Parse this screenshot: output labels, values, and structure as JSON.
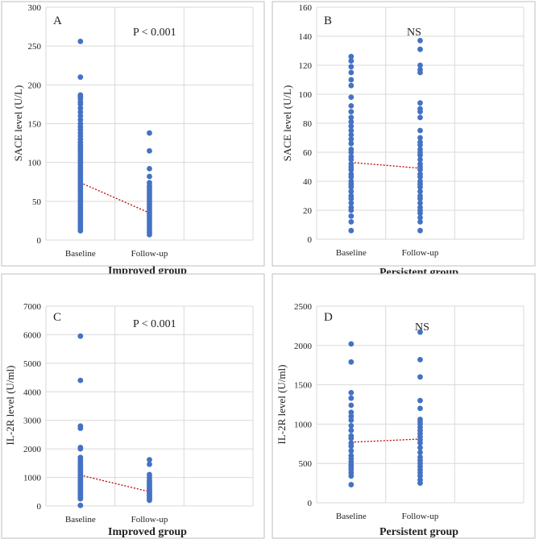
{
  "colors": {
    "point": "#4472C4",
    "trend": "#C00000",
    "grid": "#d9d9d9",
    "frame": "#bfbfbf"
  },
  "chart_data": [
    {
      "type": "scatter",
      "panel": "A",
      "annotation": "P < 0.001",
      "ylabel": "SACE level (U/L)",
      "xlabel": "Improved group",
      "categories": [
        "Baseline",
        "Follow-up"
      ],
      "ylim": [
        0,
        300
      ],
      "yticks": [
        0,
        50,
        100,
        150,
        200,
        250,
        300
      ],
      "ytick_labels": [
        "0",
        "50",
        "100",
        "150",
        "200",
        "250",
        "300"
      ],
      "series": [
        {
          "name": "Baseline",
          "values": [
            256,
            210,
            187,
            185,
            182,
            178,
            175,
            170,
            165,
            160,
            155,
            150,
            146,
            142,
            138,
            134,
            130,
            126,
            123,
            120,
            117,
            114,
            111,
            108,
            105,
            102,
            99,
            96,
            93,
            90,
            87,
            84,
            81,
            78,
            75,
            72,
            69,
            66,
            63,
            60,
            57,
            54,
            51,
            48,
            45,
            42,
            39,
            36,
            33,
            30,
            27,
            24,
            21,
            18,
            15,
            12
          ]
        },
        {
          "name": "Follow-up",
          "values": [
            138,
            115,
            92,
            82,
            74,
            70,
            67,
            64,
            61,
            58,
            55,
            52,
            49,
            46,
            43,
            40,
            37,
            34,
            31,
            28,
            25,
            22,
            19,
            16,
            13,
            10,
            7
          ]
        }
      ],
      "trend": [
        74,
        35
      ]
    },
    {
      "type": "scatter",
      "panel": "B",
      "annotation": "NS",
      "ylabel": "SACE level (U/L)",
      "xlabel": "Persistent group",
      "categories": [
        "Baseline",
        "Follow-up"
      ],
      "ylim": [
        0,
        160
      ],
      "yticks": [
        0,
        20,
        40,
        60,
        80,
        100,
        120,
        140,
        160
      ],
      "ytick_labels": [
        "0",
        "20",
        "40",
        "60",
        "80",
        "100",
        "120",
        "140",
        "160"
      ],
      "series": [
        {
          "name": "Baseline",
          "values": [
            126,
            123,
            119,
            115,
            110,
            106,
            98,
            92,
            88,
            84,
            81,
            78,
            75,
            72,
            69,
            66,
            62,
            60,
            57,
            55,
            52,
            50,
            48,
            45,
            43,
            40,
            38,
            36,
            33,
            30,
            28,
            25,
            22,
            20,
            16,
            12,
            6
          ]
        },
        {
          "name": "Follow-up",
          "values": [
            137,
            131,
            120,
            117,
            115,
            94,
            90,
            88,
            84,
            75,
            70,
            67,
            65,
            62,
            60,
            58,
            55,
            52,
            50,
            48,
            45,
            43,
            40,
            38,
            36,
            33,
            30,
            28,
            25,
            22,
            20,
            18,
            15,
            12,
            6
          ]
        }
      ],
      "trend": [
        53,
        49
      ]
    },
    {
      "type": "scatter",
      "panel": "C",
      "annotation": "P < 0.001",
      "ylabel": "IL-2R level (U/ml)",
      "xlabel": "Improved group",
      "categories": [
        "Baseline",
        "Follow-up"
      ],
      "ylim": [
        0,
        7000
      ],
      "yticks": [
        0,
        1000,
        2000,
        3000,
        4000,
        5000,
        6000,
        7000
      ],
      "ytick_labels": [
        "0",
        "1000",
        "2000",
        "3000",
        "4000",
        "5000",
        "6000",
        "7000"
      ],
      "series": [
        {
          "name": "Baseline",
          "values": [
            5950,
            4400,
            2800,
            2720,
            2050,
            2000,
            1700,
            1620,
            1550,
            1480,
            1420,
            1360,
            1300,
            1240,
            1180,
            1120,
            1060,
            1000,
            950,
            900,
            850,
            800,
            750,
            700,
            650,
            600,
            550,
            500,
            450,
            400,
            350,
            300,
            250,
            20
          ]
        },
        {
          "name": "Follow-up",
          "values": [
            1620,
            1460,
            1100,
            1000,
            900,
            840,
            780,
            720,
            660,
            600,
            550,
            500,
            450,
            400,
            350,
            300,
            250,
            200
          ]
        }
      ],
      "trend": [
        1080,
        500
      ]
    },
    {
      "type": "scatter",
      "panel": "D",
      "annotation": "NS",
      "ylabel": "IL-2R level (U/ml)",
      "xlabel": "Persistent group",
      "categories": [
        "Baseline",
        "Follow-up"
      ],
      "ylim": [
        0,
        2500
      ],
      "yticks": [
        0,
        500,
        1000,
        1500,
        2000,
        2500
      ],
      "ytick_labels": [
        "0",
        "500",
        "1000",
        "1500",
        "2000",
        "2500"
      ],
      "series": [
        {
          "name": "Baseline",
          "values": [
            2020,
            1790,
            1400,
            1330,
            1240,
            1150,
            1100,
            1050,
            980,
            920,
            850,
            820,
            760,
            720,
            660,
            600,
            560,
            520,
            480,
            450,
            420,
            380,
            340,
            230
          ]
        },
        {
          "name": "Follow-up",
          "values": [
            2170,
            1820,
            1600,
            1300,
            1200,
            1060,
            1030,
            1000,
            960,
            920,
            880,
            840,
            800,
            760,
            700,
            640,
            580,
            540,
            500,
            460,
            420,
            380,
            340,
            290,
            250
          ]
        }
      ],
      "trend": [
        770,
        810
      ]
    }
  ]
}
